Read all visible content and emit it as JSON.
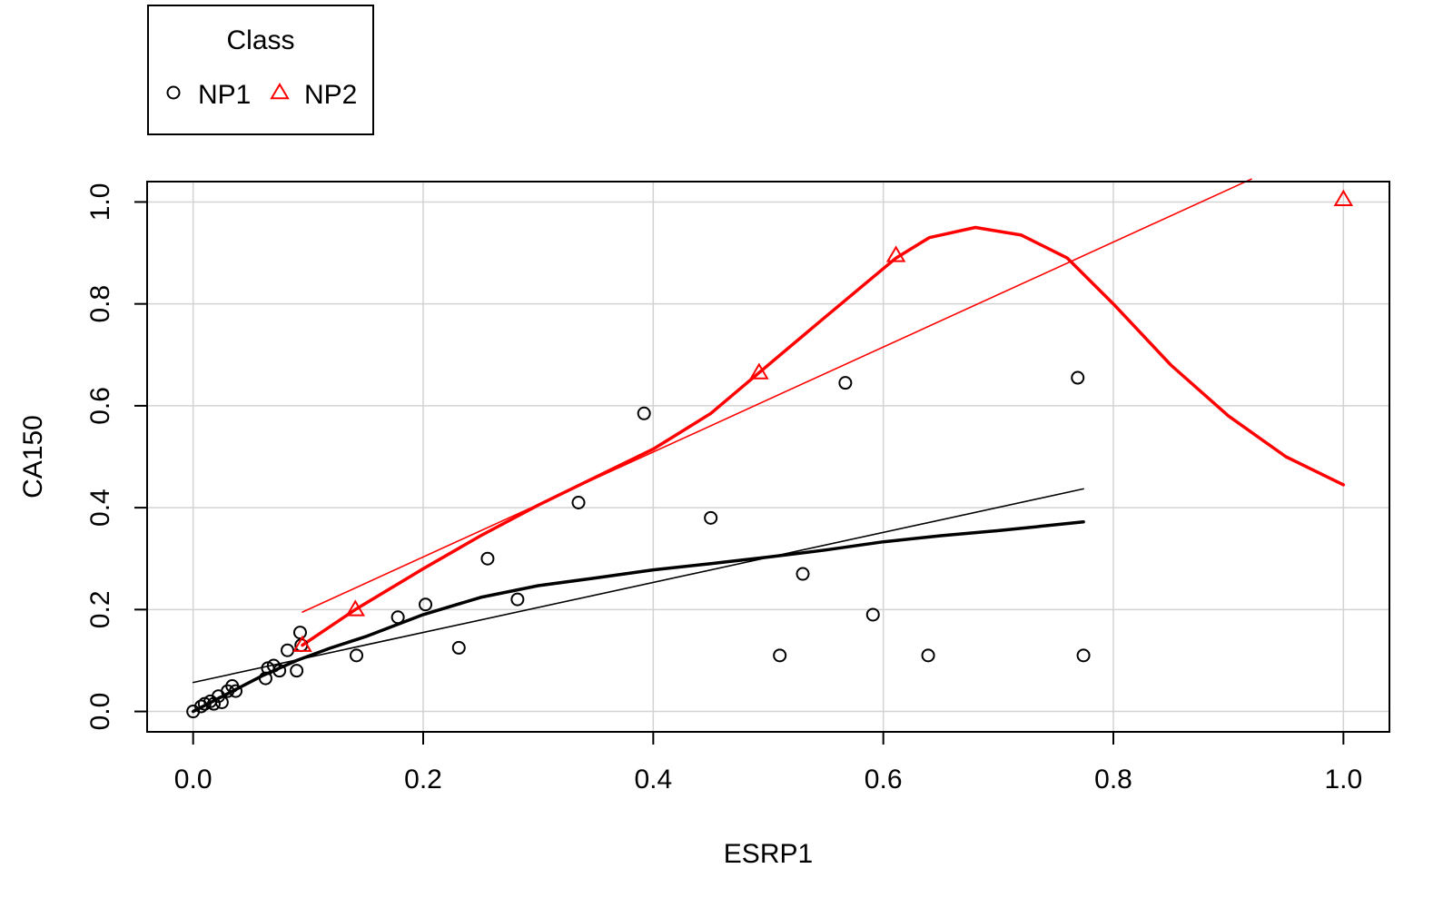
{
  "chart_data": {
    "type": "scatter",
    "xlabel": "ESRP1",
    "ylabel": "CA150",
    "xlim": [
      -0.04,
      1.04
    ],
    "ylim": [
      -0.04,
      1.04
    ],
    "xticks": [
      0.0,
      0.2,
      0.4,
      0.6,
      0.8,
      1.0
    ],
    "yticks": [
      0.0,
      0.2,
      0.4,
      0.6,
      0.8,
      1.0
    ],
    "xtick_labels": [
      "0.0",
      "0.2",
      "0.4",
      "0.6",
      "0.8",
      "1.0"
    ],
    "ytick_labels": [
      "0.0",
      "0.2",
      "0.4",
      "0.6",
      "0.8",
      "1.0"
    ],
    "grid": true,
    "legend": {
      "title": "Class",
      "placement": "top-left, outside plot",
      "entries": [
        {
          "label": "NP1",
          "marker": "circle",
          "color": "#000000"
        },
        {
          "label": "NP2",
          "marker": "triangle",
          "color": "#ff0000"
        }
      ]
    },
    "series": [
      {
        "name": "NP1",
        "marker": "circle",
        "color": "#000000",
        "x": [
          0.0,
          0.007,
          0.01,
          0.015,
          0.018,
          0.022,
          0.025,
          0.03,
          0.034,
          0.037,
          0.063,
          0.065,
          0.07,
          0.075,
          0.082,
          0.09,
          0.093,
          0.094,
          0.142,
          0.178,
          0.202,
          0.231,
          0.256,
          0.282,
          0.335,
          0.392,
          0.45,
          0.51,
          0.53,
          0.567,
          0.591,
          0.639,
          0.769,
          0.774
        ],
        "y": [
          0.0,
          0.01,
          0.015,
          0.02,
          0.015,
          0.03,
          0.018,
          0.04,
          0.05,
          0.04,
          0.065,
          0.085,
          0.09,
          0.08,
          0.12,
          0.08,
          0.155,
          0.13,
          0.11,
          0.185,
          0.21,
          0.125,
          0.3,
          0.22,
          0.41,
          0.585,
          0.38,
          0.11,
          0.27,
          0.645,
          0.19,
          0.11,
          0.655,
          0.11
        ]
      },
      {
        "name": "NP2",
        "marker": "triangle",
        "color": "#ff0000",
        "x": [
          0.095,
          0.141,
          0.492,
          0.611,
          1.0
        ],
        "y": [
          0.13,
          0.2,
          0.665,
          0.895,
          1.005
        ]
      }
    ],
    "lines": [
      {
        "series": "NP1",
        "kind": "linear fit",
        "color": "#000000",
        "x": [
          0.0,
          0.774
        ],
        "y": [
          0.057,
          0.437
        ]
      },
      {
        "series": "NP1",
        "kind": "smooth fit",
        "color": "#000000",
        "x": [
          0.0,
          0.03,
          0.06,
          0.09,
          0.12,
          0.15,
          0.2,
          0.25,
          0.3,
          0.35,
          0.4,
          0.45,
          0.5,
          0.55,
          0.6,
          0.65,
          0.7,
          0.774
        ],
        "y": [
          0.0,
          0.035,
          0.07,
          0.1,
          0.125,
          0.147,
          0.19,
          0.224,
          0.247,
          0.262,
          0.278,
          0.29,
          0.303,
          0.317,
          0.333,
          0.345,
          0.355,
          0.372
        ]
      },
      {
        "series": "NP2",
        "kind": "linear fit",
        "color": "#ff0000",
        "x": [
          0.095,
          0.92
        ],
        "y": [
          0.195,
          1.045
        ]
      },
      {
        "series": "NP2",
        "kind": "smooth fit",
        "color": "#ff0000",
        "x": [
          0.095,
          0.141,
          0.2,
          0.25,
          0.3,
          0.35,
          0.4,
          0.45,
          0.492,
          0.55,
          0.611,
          0.64,
          0.68,
          0.72,
          0.76,
          0.8,
          0.85,
          0.9,
          0.95,
          1.0
        ],
        "y": [
          0.13,
          0.2,
          0.28,
          0.345,
          0.405,
          0.46,
          0.515,
          0.585,
          0.665,
          0.775,
          0.89,
          0.93,
          0.95,
          0.935,
          0.89,
          0.8,
          0.68,
          0.58,
          0.5,
          0.445
        ]
      }
    ]
  }
}
